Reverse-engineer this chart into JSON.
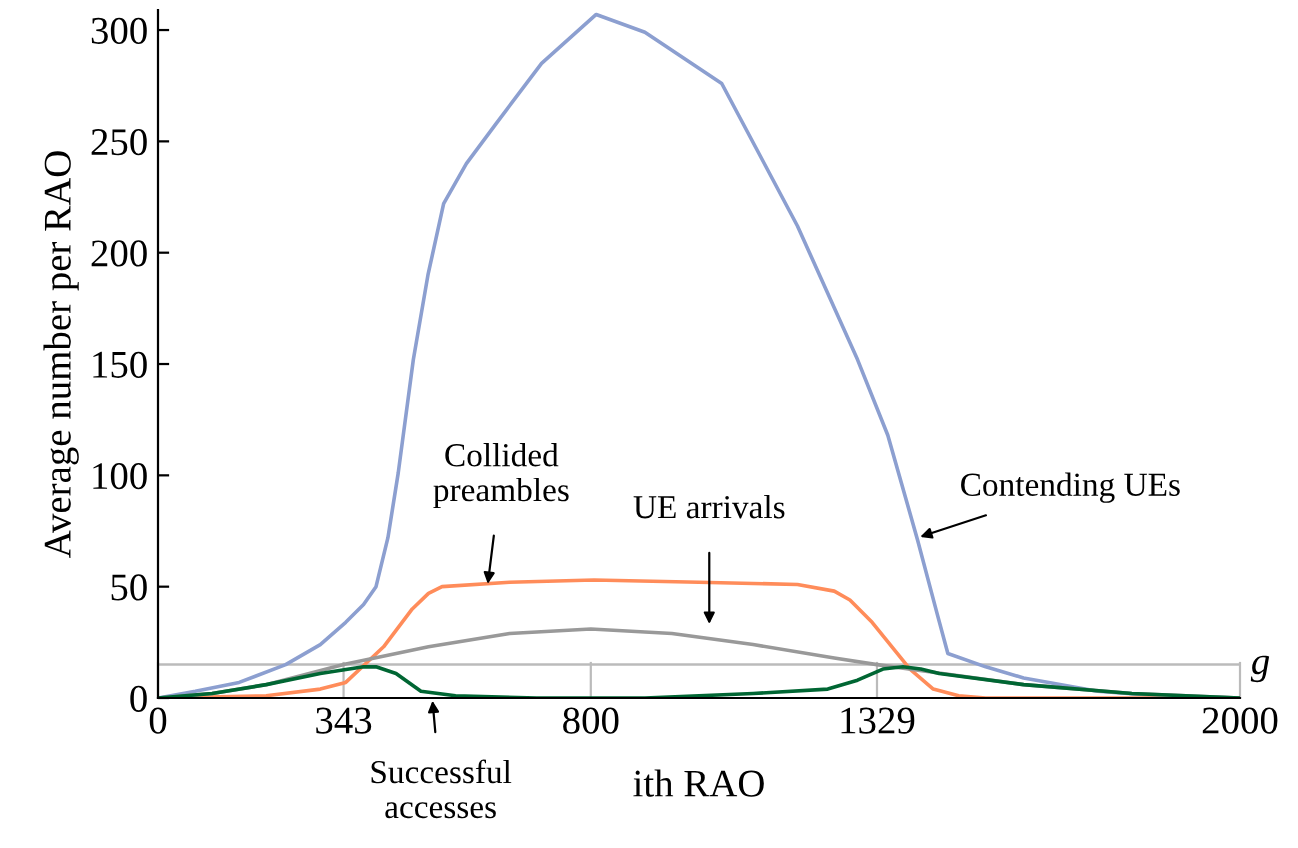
{
  "chart_data": {
    "type": "line",
    "xlabel": "ith RAO",
    "ylabel": "Average number per RAO",
    "xlim": [
      0,
      2000
    ],
    "ylim": [
      0,
      309
    ],
    "xticks": [
      0,
      343,
      800,
      1329,
      2000
    ],
    "yticks": [
      0,
      50,
      100,
      150,
      200,
      250,
      300
    ],
    "grid": false,
    "legend": false,
    "marker": "none",
    "line_style": "solid",
    "series": [
      {
        "color": "#8c9fd0",
        "x": [
          0,
          69,
          150,
          236,
          300,
          347,
          380,
          403,
          425,
          444,
          472,
          499,
          528,
          570,
          625,
          709,
          810,
          900,
          1042,
          1182,
          1293,
          1349,
          1404,
          1440,
          1460,
          1530,
          1600,
          1737,
          1850,
          2000
        ],
        "values": [
          0,
          3,
          7,
          15,
          24,
          34,
          42,
          50,
          72,
          101,
          152,
          190,
          222,
          240,
          258,
          285,
          307,
          299,
          276,
          212,
          152,
          118,
          71,
          38,
          20,
          14,
          9,
          3,
          1,
          0
        ]
      },
      {
        "color": "#ff8c5a",
        "x": [
          0,
          200,
          300,
          347,
          417,
          470,
          500,
          525,
          650,
          806,
          1000,
          1182,
          1250,
          1279,
          1320,
          1390,
          1433,
          1480,
          1530,
          2000
        ],
        "values": [
          0,
          1,
          4,
          7,
          23,
          40,
          47,
          50,
          52,
          53,
          52,
          51,
          48,
          44,
          34,
          13,
          4,
          1,
          0,
          0
        ]
      },
      {
        "color": "#999999",
        "x": [
          0,
          100,
          200,
          343,
          500,
          650,
          800,
          950,
          1100,
          1250,
          1329,
          1450,
          1600,
          1800,
          2000
        ],
        "values": [
          0,
          2,
          6,
          15,
          23,
          29,
          31,
          29,
          24,
          18,
          15,
          11,
          6,
          2,
          0
        ]
      },
      {
        "color": "#006633",
        "x": [
          0,
          100,
          200,
          300,
          380,
          403,
          440,
          486,
          550,
          700,
          900,
          1100,
          1238,
          1293,
          1340,
          1377,
          1410,
          1444,
          1600,
          1800,
          2000
        ],
        "values": [
          0,
          2,
          6,
          11,
          14,
          14,
          11,
          3,
          1,
          0,
          0,
          2,
          4,
          8,
          13,
          14,
          13,
          11,
          6,
          2,
          0
        ]
      }
    ],
    "ref_lines": [
      {
        "axis": "y",
        "value": 15,
        "label": "g",
        "color": "#bbbbbb"
      }
    ],
    "annotations": [
      {
        "text": "Collided\npreambles",
        "x": 609,
        "y": 50
      },
      {
        "text": "UE arrivals",
        "x": 1019,
        "y": 32
      },
      {
        "text": "Contending UEs",
        "x": 1404,
        "y": 72
      },
      {
        "text": "Successful\naccesses",
        "x": 507,
        "y": 0
      }
    ]
  }
}
